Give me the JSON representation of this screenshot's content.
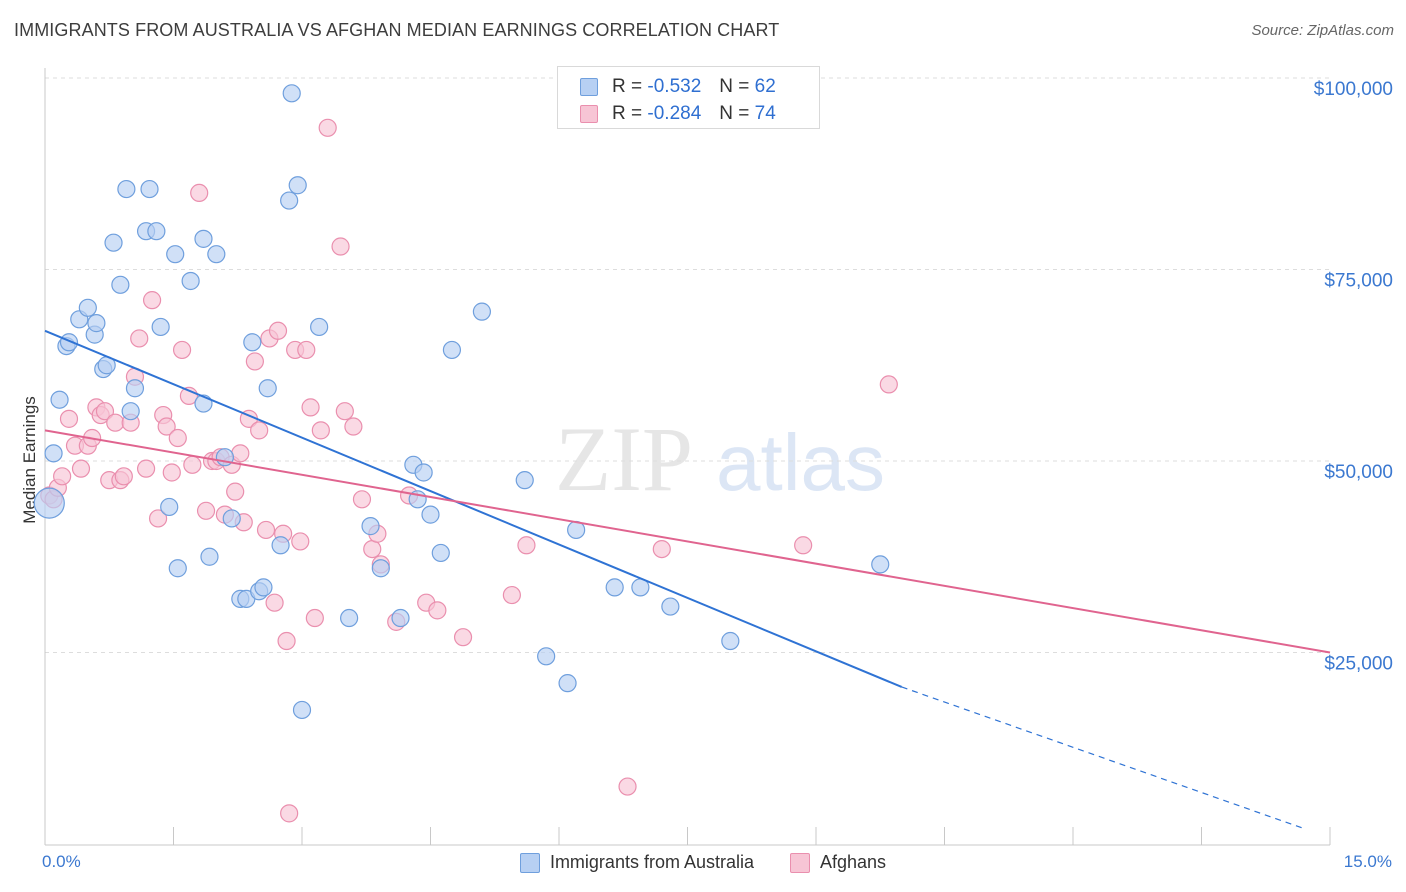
{
  "title": "IMMIGRANTS FROM AUSTRALIA VS AFGHAN MEDIAN EARNINGS CORRELATION CHART",
  "source": "Source: ZipAtlas.com",
  "watermark": {
    "zip": "ZIP",
    "atlas": "atlas"
  },
  "colors": {
    "blue_fill": "#b7d0f3",
    "blue_stroke": "#6f9fdd",
    "blue_line": "#2f73d4",
    "pink_fill": "#f7c5d5",
    "pink_stroke": "#ea8fae",
    "pink_line": "#e0648f",
    "tick_label": "#3b78d0",
    "grid": "#dddddd"
  },
  "legend_box": {
    "rows": [
      {
        "r_label": "R =",
        "r_value": "-0.532",
        "n_label": "N =",
        "n_value": "62"
      },
      {
        "r_label": "R =",
        "r_value": "-0.284",
        "n_label": "N =",
        "n_value": "74"
      }
    ]
  },
  "chart_data": {
    "type": "scatter",
    "title": "IMMIGRANTS FROM AUSTRALIA VS AFGHAN MEDIAN EARNINGS CORRELATION CHART",
    "xlabel": "",
    "ylabel": "Median Earnings",
    "xlim": [
      0,
      15
    ],
    "ylim": [
      0,
      105000
    ],
    "x_tick_labels": [
      "0.0%",
      "15.0%"
    ],
    "y_ticks": [
      25000,
      50000,
      75000,
      100000
    ],
    "y_tick_labels": [
      "$25,000",
      "$50,000",
      "$75,000",
      "$100,000"
    ],
    "grid": true,
    "legend_position": "top-center",
    "series": [
      {
        "name": "Immigrants from Australia",
        "R": -0.532,
        "N": 62,
        "trend": {
          "x": [
            0.0,
            10.0
          ],
          "y": [
            67000,
            20500
          ],
          "dashed_to": [
            14.7,
            2000
          ]
        },
        "points": [
          [
            0.05,
            44500
          ],
          [
            0.1,
            51000
          ],
          [
            0.17,
            58000
          ],
          [
            0.25,
            65000
          ],
          [
            0.28,
            65500
          ],
          [
            0.4,
            68500
          ],
          [
            0.5,
            70000
          ],
          [
            0.58,
            66500
          ],
          [
            0.6,
            68000
          ],
          [
            0.68,
            62000
          ],
          [
            0.72,
            62500
          ],
          [
            0.8,
            78500
          ],
          [
            0.88,
            73000
          ],
          [
            0.95,
            85500
          ],
          [
            1.0,
            56500
          ],
          [
            1.05,
            59500
          ],
          [
            1.18,
            80000
          ],
          [
            1.22,
            85500
          ],
          [
            1.3,
            80000
          ],
          [
            1.35,
            67500
          ],
          [
            1.45,
            44000
          ],
          [
            1.52,
            77000
          ],
          [
            1.55,
            36000
          ],
          [
            1.7,
            73500
          ],
          [
            1.85,
            57500
          ],
          [
            1.85,
            79000
          ],
          [
            1.92,
            37500
          ],
          [
            2.0,
            77000
          ],
          [
            2.1,
            50500
          ],
          [
            2.18,
            42500
          ],
          [
            2.28,
            32000
          ],
          [
            2.35,
            32000
          ],
          [
            2.42,
            65500
          ],
          [
            2.5,
            33000
          ],
          [
            2.55,
            33500
          ],
          [
            2.6,
            59500
          ],
          [
            2.75,
            39000
          ],
          [
            2.85,
            84000
          ],
          [
            2.88,
            98000
          ],
          [
            2.95,
            86000
          ],
          [
            3.0,
            17500
          ],
          [
            3.2,
            67500
          ],
          [
            3.55,
            29500
          ],
          [
            3.8,
            41500
          ],
          [
            3.92,
            36000
          ],
          [
            4.15,
            29500
          ],
          [
            4.3,
            49500
          ],
          [
            4.35,
            45000
          ],
          [
            4.42,
            48500
          ],
          [
            4.5,
            43000
          ],
          [
            4.62,
            38000
          ],
          [
            4.75,
            64500
          ],
          [
            5.1,
            69500
          ],
          [
            5.6,
            47500
          ],
          [
            5.85,
            24500
          ],
          [
            6.1,
            21000
          ],
          [
            6.2,
            41000
          ],
          [
            6.65,
            33500
          ],
          [
            6.95,
            33500
          ],
          [
            7.3,
            31000
          ],
          [
            8.0,
            26500
          ],
          [
            9.75,
            36500
          ]
        ]
      },
      {
        "name": "Afghans",
        "R": -0.284,
        "N": 74,
        "trend": {
          "x": [
            0.0,
            15.0
          ],
          "y": [
            54000,
            25000
          ]
        },
        "points": [
          [
            0.05,
            45500
          ],
          [
            0.1,
            45000
          ],
          [
            0.15,
            46500
          ],
          [
            0.2,
            48000
          ],
          [
            0.28,
            55500
          ],
          [
            0.35,
            52000
          ],
          [
            0.42,
            49000
          ],
          [
            0.5,
            52000
          ],
          [
            0.55,
            53000
          ],
          [
            0.6,
            57000
          ],
          [
            0.65,
            56000
          ],
          [
            0.7,
            56500
          ],
          [
            0.75,
            47500
          ],
          [
            0.82,
            55000
          ],
          [
            0.88,
            47500
          ],
          [
            0.92,
            48000
          ],
          [
            1.0,
            55000
          ],
          [
            1.05,
            61000
          ],
          [
            1.1,
            66000
          ],
          [
            1.18,
            49000
          ],
          [
            1.25,
            71000
          ],
          [
            1.32,
            42500
          ],
          [
            1.38,
            56000
          ],
          [
            1.42,
            54500
          ],
          [
            1.48,
            48500
          ],
          [
            1.55,
            53000
          ],
          [
            1.6,
            64500
          ],
          [
            1.68,
            58500
          ],
          [
            1.72,
            49500
          ],
          [
            1.8,
            85000
          ],
          [
            1.88,
            43500
          ],
          [
            1.95,
            50000
          ],
          [
            2.0,
            50000
          ],
          [
            2.05,
            50500
          ],
          [
            2.1,
            43000
          ],
          [
            2.18,
            49500
          ],
          [
            2.22,
            46000
          ],
          [
            2.28,
            51000
          ],
          [
            2.32,
            42000
          ],
          [
            2.38,
            55500
          ],
          [
            2.45,
            63000
          ],
          [
            2.5,
            54000
          ],
          [
            2.58,
            41000
          ],
          [
            2.62,
            66000
          ],
          [
            2.68,
            31500
          ],
          [
            2.72,
            67000
          ],
          [
            2.78,
            40500
          ],
          [
            2.82,
            26500
          ],
          [
            2.85,
            4000
          ],
          [
            2.92,
            64500
          ],
          [
            2.98,
            39500
          ],
          [
            3.05,
            64500
          ],
          [
            3.1,
            57000
          ],
          [
            3.15,
            29500
          ],
          [
            3.22,
            54000
          ],
          [
            3.3,
            93500
          ],
          [
            3.45,
            78000
          ],
          [
            3.5,
            56500
          ],
          [
            3.6,
            54500
          ],
          [
            3.7,
            45000
          ],
          [
            3.82,
            38500
          ],
          [
            3.88,
            40500
          ],
          [
            3.92,
            36500
          ],
          [
            4.1,
            29000
          ],
          [
            4.25,
            45500
          ],
          [
            4.45,
            31500
          ],
          [
            4.58,
            30500
          ],
          [
            4.88,
            27000
          ],
          [
            5.45,
            32500
          ],
          [
            5.62,
            39000
          ],
          [
            7.2,
            38500
          ],
          [
            8.85,
            39000
          ],
          [
            9.85,
            60000
          ],
          [
            6.8,
            7500
          ]
        ]
      }
    ]
  },
  "bottom_legend": [
    "Immigrants from Australia",
    "Afghans"
  ]
}
